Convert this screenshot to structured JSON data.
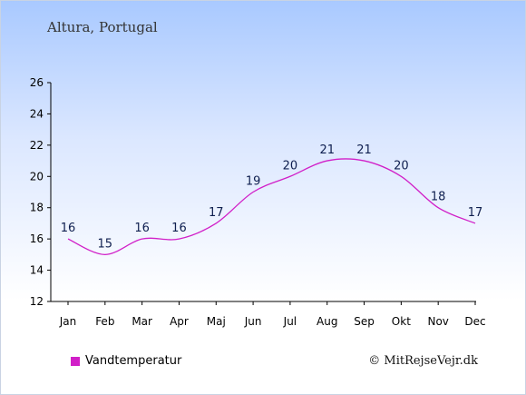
{
  "chart_data": {
    "type": "line",
    "title": "Altura, Portugal",
    "categories": [
      "Jan",
      "Feb",
      "Mar",
      "Apr",
      "Maj",
      "Jun",
      "Jul",
      "Aug",
      "Sep",
      "Okt",
      "Nov",
      "Dec"
    ],
    "series": [
      {
        "name": "Vandtemperatur",
        "values": [
          16,
          15,
          16,
          16,
          17,
          19,
          20,
          21,
          21,
          20,
          18,
          17
        ],
        "color": "#d11fc8"
      }
    ],
    "ylim": [
      12,
      26
    ],
    "yticks": [
      12,
      14,
      16,
      18,
      20,
      22,
      24,
      26
    ],
    "grid": false,
    "legend_position": "bottom-left"
  },
  "copyright": "© MitRejseVejr.dk"
}
